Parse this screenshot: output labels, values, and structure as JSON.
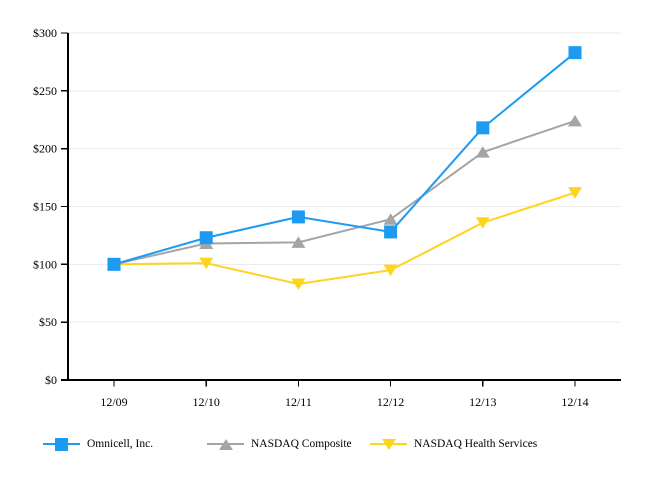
{
  "chart_data": {
    "type": "line",
    "title": "",
    "xlabel": "",
    "ylabel": "",
    "categories": [
      "12/09",
      "12/10",
      "12/11",
      "12/12",
      "12/13",
      "12/14"
    ],
    "y_ticks": [
      "$0",
      "$50",
      "$100",
      "$150",
      "$200",
      "$250",
      "$300"
    ],
    "ylim": [
      0,
      300
    ],
    "y_tick_step": 50,
    "grid": true,
    "legend_position": "bottom",
    "series": [
      {
        "name": "Omnicell, Inc.",
        "marker": "square",
        "color": "#1D9BF0",
        "values": [
          100,
          123,
          141,
          128,
          218,
          283
        ]
      },
      {
        "name": "NASDAQ Composite",
        "marker": "triangle-up",
        "color": "#A5A5A5",
        "values": [
          100,
          118,
          119,
          139,
          197,
          224
        ]
      },
      {
        "name": "NASDAQ Health Services",
        "marker": "triangle-down",
        "color": "#FFD41C",
        "values": [
          100,
          101,
          83,
          95,
          136,
          162
        ]
      }
    ],
    "colors": {
      "axis": "#000000",
      "grid": "#EBEBEB",
      "background": "#FFFFFF",
      "text": "#000000"
    }
  }
}
